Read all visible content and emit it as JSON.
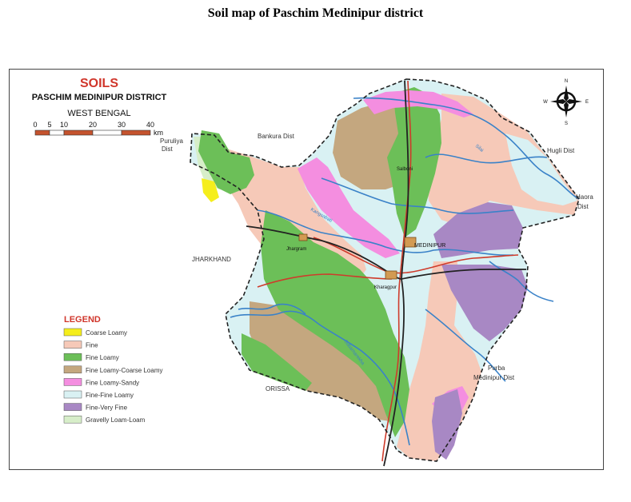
{
  "page": {
    "title": "Soil map of Paschim Medinipur district"
  },
  "map": {
    "heading": "SOILS",
    "subtitle": "PASCHIM MEDINIPUR DISTRICT",
    "state": "WEST BENGAL",
    "scale": {
      "ticks": [
        "0",
        "5",
        "10",
        "20",
        "30",
        "40"
      ],
      "unit": "km"
    },
    "compass": {
      "n": "N",
      "s": "S",
      "e": "E",
      "w": "W"
    },
    "places": {
      "bankura": "Bankura Dist",
      "puruliya_1": "Puruliya",
      "puruliya_2": "Dist",
      "hugli": "Hugli Dist",
      "haora_1": "Haora",
      "haora_2": "Dist",
      "jharkhand": "JHARKHAND",
      "orissa": "ORISSA",
      "purba_1": "Purba",
      "purba_2": "Medinipur Dist",
      "medinipur": "MEDINIPUR",
      "kharagpur": "Kharagpur",
      "jhargram": "Jhargram",
      "salboni": "Salboni",
      "river_silai": "Silai",
      "river_kangsabati": "Kangsabati",
      "river_subarnarekha": "Subarnarekha"
    },
    "legend": {
      "title": "LEGEND",
      "items": [
        {
          "label": "Coarse Loamy",
          "color": "#f5ee1c"
        },
        {
          "label": "Fine",
          "color": "#f6c9b8"
        },
        {
          "label": "Fine Loamy",
          "color": "#6cbf58"
        },
        {
          "label": "Fine Loamy-Coarse Loamy",
          "color": "#c4a77f"
        },
        {
          "label": "Fine Loamy-Sandy",
          "color": "#f48ee0"
        },
        {
          "label": "Fine-Fine Loamy",
          "color": "#d9f1f3"
        },
        {
          "label": "Fine-Very Fine",
          "color": "#a888c4"
        },
        {
          "label": "Gravelly Loam-Loam",
          "color": "#d7eec9"
        }
      ]
    },
    "colors": {
      "river": "#3a82c8",
      "road": "#cf3b2b",
      "rail": "#222222",
      "boundary": "#222222",
      "heading": "#d0362b"
    }
  }
}
